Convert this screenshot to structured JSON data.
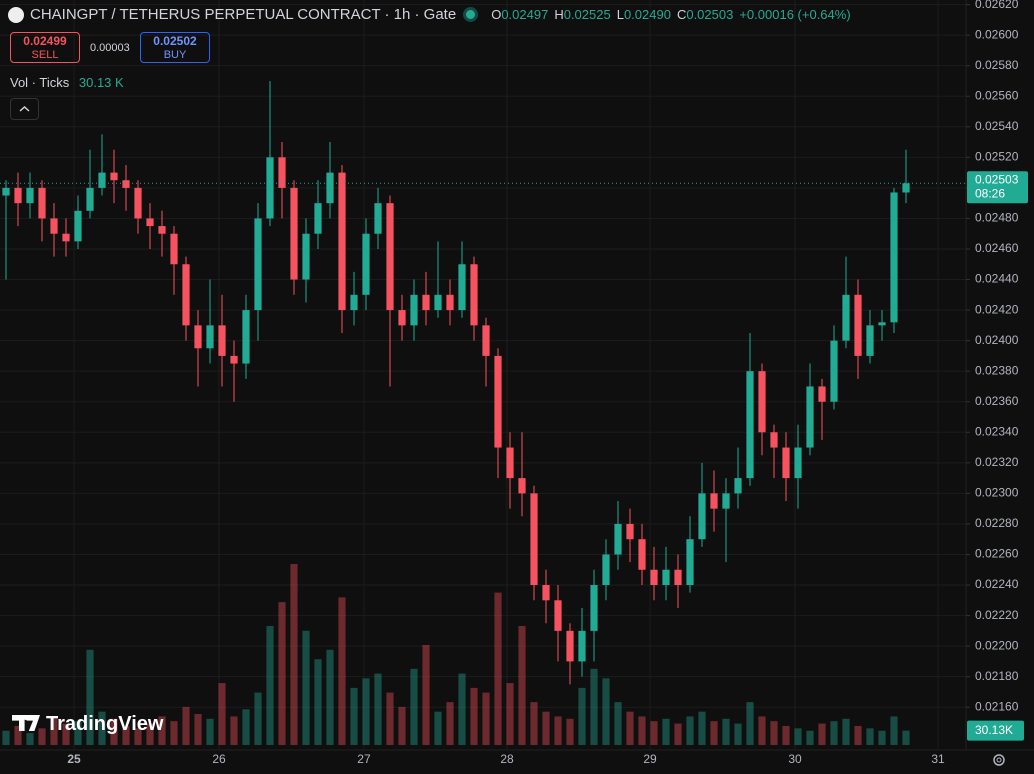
{
  "header": {
    "title": "CHAINGPT / TETHERUS PERPETUAL CONTRACT · 1h · Gate",
    "ohlc": [
      {
        "key": "O",
        "value": "0.02497"
      },
      {
        "key": "H",
        "value": "0.02525"
      },
      {
        "key": "L",
        "value": "0.02490"
      },
      {
        "key": "C",
        "value": "0.02503"
      }
    ],
    "change": "+0.00016 (+0.64%)",
    "sell_price": "0.02499",
    "sell": "SELL",
    "spread": "0.00003",
    "buy_price": "0.02502",
    "buy": "BUY",
    "volume_title": "Vol · Ticks",
    "volume_label": "30.13 K",
    "price_badge": "0.02503",
    "countdown": "08:26",
    "volume_badge": "30.13K",
    "brand": "TradingView"
  },
  "chart_data": {
    "type": "candlestick",
    "up_color": "#22ab94",
    "down_color": "#f7525f",
    "grid": true,
    "xlim": [
      -0.5,
      80
    ],
    "xticks": [
      {
        "value": 5.67,
        "label": "25"
      },
      {
        "value": 17.75,
        "label": "26"
      },
      {
        "value": 29.83,
        "label": "27"
      },
      {
        "value": 41.75,
        "label": "28"
      },
      {
        "value": 53.67,
        "label": "29"
      },
      {
        "value": 65.75,
        "label": "30"
      },
      {
        "value": 77.67,
        "label": "31"
      }
    ],
    "ylim": [
      0.02132,
      0.02623
    ],
    "yticks": [
      {
        "value": 0.0216,
        "label": "0.02160"
      },
      {
        "value": 0.0218,
        "label": "0.02180"
      },
      {
        "value": 0.022,
        "label": "0.02200"
      },
      {
        "value": 0.0222,
        "label": "0.02220"
      },
      {
        "value": 0.0224,
        "label": "0.02240"
      },
      {
        "value": 0.0226,
        "label": "0.02260"
      },
      {
        "value": 0.0228,
        "label": "0.02280"
      },
      {
        "value": 0.023,
        "label": "0.02300"
      },
      {
        "value": 0.0232,
        "label": "0.02320"
      },
      {
        "value": 0.0234,
        "label": "0.02340"
      },
      {
        "value": 0.0236,
        "label": "0.02360"
      },
      {
        "value": 0.0238,
        "label": "0.02380"
      },
      {
        "value": 0.024,
        "label": "0.02400"
      },
      {
        "value": 0.0242,
        "label": "0.02420"
      },
      {
        "value": 0.0244,
        "label": "0.02440"
      },
      {
        "value": 0.0246,
        "label": "0.02460"
      },
      {
        "value": 0.0248,
        "label": "0.02480"
      },
      {
        "value": 0.025,
        "label": "0.02500"
      },
      {
        "value": 0.0252,
        "label": "0.02520"
      },
      {
        "value": 0.0254,
        "label": "0.02540"
      },
      {
        "value": 0.0256,
        "label": "0.02560"
      },
      {
        "value": 0.0258,
        "label": "0.02580"
      },
      {
        "value": 0.026,
        "label": "0.02600"
      },
      {
        "value": 0.0262,
        "label": "0.02620"
      }
    ],
    "open": [
      0.02495,
      0.025,
      0.0249,
      0.025,
      0.0248,
      0.0247,
      0.02465,
      0.02485,
      0.025,
      0.0251,
      0.02505,
      0.025,
      0.0248,
      0.02475,
      0.0247,
      0.0245,
      0.0241,
      0.02395,
      0.0241,
      0.0239,
      0.02385,
      0.0242,
      0.0248,
      0.0252,
      0.025,
      0.0244,
      0.0247,
      0.0249,
      0.0251,
      0.0242,
      0.0243,
      0.0247,
      0.0249,
      0.0242,
      0.0241,
      0.0243,
      0.0242,
      0.0243,
      0.0242,
      0.0245,
      0.0241,
      0.0239,
      0.0233,
      0.0231,
      0.023,
      0.0224,
      0.0223,
      0.0221,
      0.0219,
      0.0221,
      0.0224,
      0.0226,
      0.0228,
      0.0227,
      0.0225,
      0.0224,
      0.0225,
      0.0224,
      0.0227,
      0.023,
      0.0229,
      0.023,
      0.0231,
      0.0238,
      0.0234,
      0.0233,
      0.0231,
      0.0233,
      0.0237,
      0.0236,
      0.024,
      0.0243,
      0.0239,
      0.0241,
      0.02412,
      0.02497
    ],
    "high": [
      0.02505,
      0.0251,
      0.0251,
      0.02505,
      0.0249,
      0.0248,
      0.02495,
      0.02525,
      0.02535,
      0.02525,
      0.02515,
      0.02505,
      0.0249,
      0.02485,
      0.02475,
      0.02455,
      0.0242,
      0.0244,
      0.0243,
      0.024,
      0.0243,
      0.0249,
      0.0257,
      0.0253,
      0.02505,
      0.0248,
      0.02505,
      0.0253,
      0.02515,
      0.02445,
      0.0248,
      0.025,
      0.02495,
      0.0243,
      0.0244,
      0.02445,
      0.02465,
      0.0244,
      0.02465,
      0.02455,
      0.02415,
      0.02395,
      0.0234,
      0.0234,
      0.02305,
      0.0225,
      0.0224,
      0.02215,
      0.02225,
      0.0225,
      0.0227,
      0.02295,
      0.0229,
      0.0228,
      0.02265,
      0.02265,
      0.0226,
      0.02285,
      0.0232,
      0.02315,
      0.0231,
      0.0233,
      0.02405,
      0.02385,
      0.02345,
      0.0234,
      0.02345,
      0.02385,
      0.02375,
      0.0241,
      0.02455,
      0.0244,
      0.0242,
      0.0242,
      0.025,
      0.02525
    ],
    "low": [
      0.0244,
      0.02475,
      0.0248,
      0.02465,
      0.02455,
      0.02455,
      0.0246,
      0.0248,
      0.02495,
      0.0249,
      0.02485,
      0.0247,
      0.0246,
      0.02455,
      0.0243,
      0.024,
      0.0237,
      0.02385,
      0.0237,
      0.0236,
      0.02375,
      0.024,
      0.02475,
      0.0248,
      0.0243,
      0.02425,
      0.0246,
      0.0248,
      0.02405,
      0.0241,
      0.0242,
      0.0246,
      0.0237,
      0.024,
      0.024,
      0.0241,
      0.02415,
      0.0241,
      0.02415,
      0.024,
      0.0237,
      0.0231,
      0.0229,
      0.02285,
      0.0223,
      0.02215,
      0.0219,
      0.02175,
      0.0218,
      0.0219,
      0.0223,
      0.0225,
      0.02255,
      0.0224,
      0.0223,
      0.0223,
      0.02225,
      0.02235,
      0.02265,
      0.02275,
      0.02255,
      0.0229,
      0.02305,
      0.02325,
      0.0231,
      0.02295,
      0.0229,
      0.02325,
      0.02335,
      0.02355,
      0.02395,
      0.02375,
      0.02385,
      0.024,
      0.02405,
      0.0249
    ],
    "close": [
      0.025,
      0.0249,
      0.025,
      0.0248,
      0.0247,
      0.02465,
      0.02485,
      0.025,
      0.0251,
      0.02505,
      0.025,
      0.0248,
      0.02475,
      0.0247,
      0.0245,
      0.0241,
      0.02395,
      0.0241,
      0.0239,
      0.02385,
      0.0242,
      0.0248,
      0.0252,
      0.025,
      0.0244,
      0.0247,
      0.0249,
      0.0251,
      0.0242,
      0.0243,
      0.0247,
      0.0249,
      0.0242,
      0.0241,
      0.0243,
      0.0242,
      0.0243,
      0.0242,
      0.0245,
      0.0241,
      0.0239,
      0.0233,
      0.0231,
      0.023,
      0.0224,
      0.0223,
      0.0221,
      0.0219,
      0.0221,
      0.0224,
      0.0226,
      0.0228,
      0.0227,
      0.0225,
      0.0224,
      0.0225,
      0.0224,
      0.0227,
      0.023,
      0.0229,
      0.023,
      0.0231,
      0.0238,
      0.0234,
      0.0233,
      0.0231,
      0.0233,
      0.0237,
      0.0236,
      0.024,
      0.0243,
      0.0239,
      0.0241,
      0.02412,
      0.02497,
      0.02503
    ],
    "volume_lim": [
      0,
      420
    ],
    "volume": [
      30,
      40,
      25,
      35,
      60,
      45,
      50,
      200,
      70,
      55,
      40,
      35,
      45,
      60,
      50,
      80,
      65,
      55,
      130,
      60,
      75,
      110,
      250,
      300,
      380,
      240,
      180,
      200,
      310,
      120,
      140,
      150,
      110,
      80,
      160,
      210,
      70,
      90,
      150,
      120,
      110,
      320,
      130,
      250,
      90,
      70,
      60,
      55,
      120,
      160,
      140,
      90,
      70,
      60,
      50,
      55,
      45,
      60,
      70,
      50,
      55,
      45,
      90,
      60,
      50,
      40,
      35,
      30,
      45,
      50,
      55,
      40,
      35,
      30,
      60,
      30.13
    ]
  }
}
